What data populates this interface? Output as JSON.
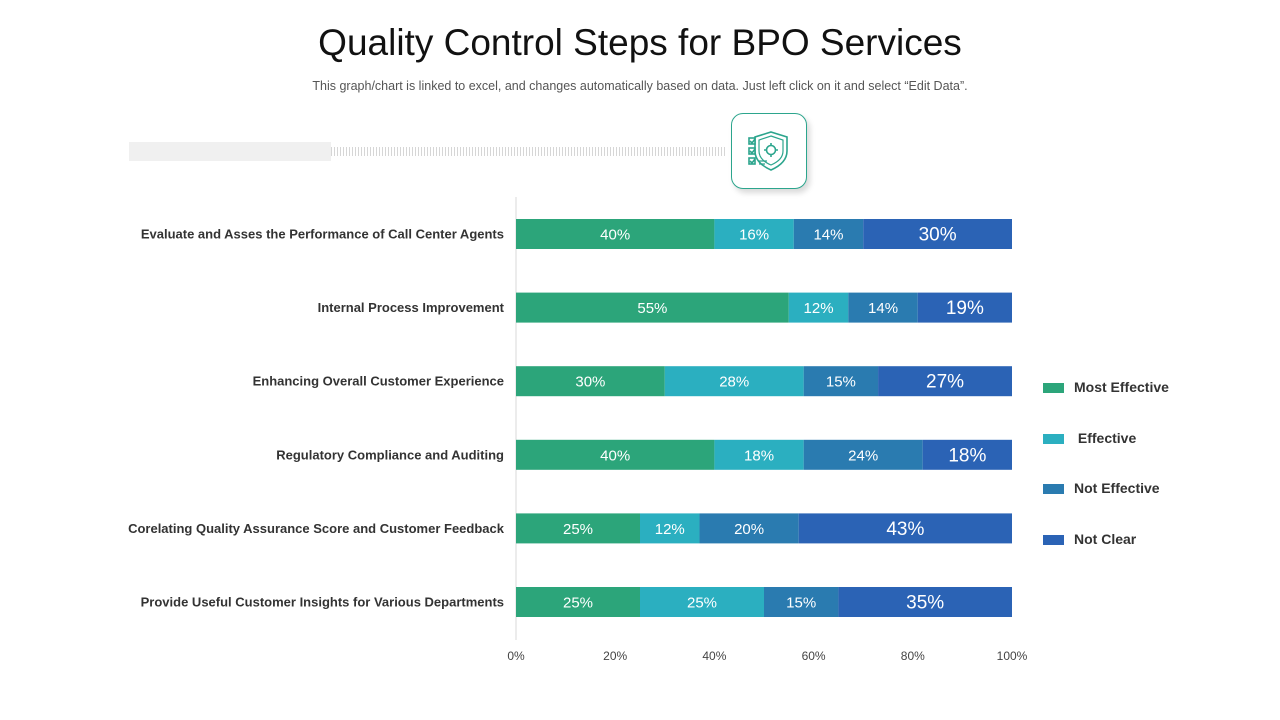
{
  "title": "Quality Control Steps for BPO Services",
  "subtitle": "This graph/chart is linked to excel, and changes automatically based on data. Just left click on it and select “Edit Data”.",
  "icon": "shield-checklist-icon",
  "colors": {
    "most_effective": "#2ca57a",
    "effective": "#2bafc0",
    "not_effective": "#2a7bb0",
    "not_clear": "#2b63b5"
  },
  "chart_data": {
    "type": "bar",
    "orientation": "horizontal",
    "stacked": true,
    "categories": [
      "Evaluate and Asses the Performance of Call Center Agents",
      "Internal Process Improvement",
      "Enhancing Overall Customer Experience",
      "Regulatory Compliance and Auditing",
      "Corelating Quality Assurance Score and Customer Feedback",
      "Provide Useful Customer Insights for Various Departments"
    ],
    "series": [
      {
        "name": "Most Effective",
        "values": [
          40,
          55,
          30,
          40,
          25,
          25
        ]
      },
      {
        "name": " Effective",
        "values": [
          16,
          12,
          28,
          18,
          12,
          25
        ]
      },
      {
        "name": "Not Effective",
        "values": [
          14,
          14,
          15,
          24,
          20,
          15
        ]
      },
      {
        "name": "Not Clear",
        "values": [
          30,
          19,
          27,
          18,
          43,
          35
        ]
      }
    ],
    "xlim": [
      0,
      100
    ],
    "xticks": [
      "0%",
      "20%",
      "40%",
      "60%",
      "80%",
      "100%"
    ],
    "value_suffix": "%",
    "legend_position": "right",
    "grid": false
  }
}
